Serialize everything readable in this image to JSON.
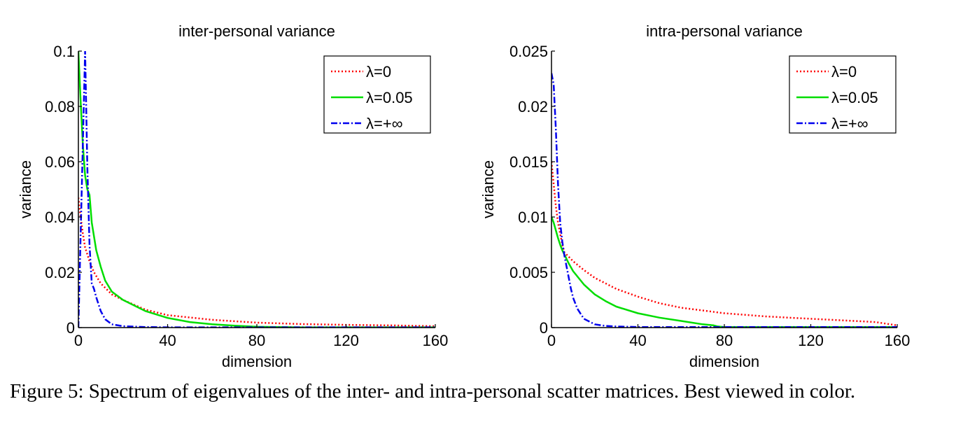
{
  "caption": "Figure 5: Spectrum of eigenvalues of the inter- and intra-personal scatter matrices. Best viewed in color.",
  "chart_data": [
    {
      "type": "line",
      "title": "inter-personal variance",
      "xlabel": "dimension",
      "ylabel": "variance",
      "xlim": [
        0,
        160
      ],
      "ylim": [
        0,
        0.1
      ],
      "xticks": [
        0,
        40,
        80,
        120,
        160
      ],
      "xtick_labels": [
        "0",
        "40",
        "80",
        "120",
        "160"
      ],
      "yticks": [
        0,
        0.02,
        0.04,
        0.06,
        0.08,
        0.1
      ],
      "ytick_labels": [
        "0",
        "0.02",
        "0.04",
        "0.06",
        "0.08",
        "0.1"
      ],
      "grid": false,
      "legend_position": "top-right",
      "series": [
        {
          "name": "λ=0",
          "color": "#ff0000",
          "style": "dotted",
          "x": [
            0,
            1,
            2,
            3,
            5,
            7,
            10,
            15,
            20,
            30,
            40,
            60,
            80,
            100,
            120,
            140,
            160
          ],
          "y": [
            0.047,
            0.04,
            0.034,
            0.029,
            0.024,
            0.02,
            0.016,
            0.012,
            0.01,
            0.0065,
            0.0045,
            0.0028,
            0.0018,
            0.0013,
            0.001,
            0.0008,
            0.0005
          ]
        },
        {
          "name": "λ=0.05",
          "color": "#00dd00",
          "style": "solid",
          "x": [
            0,
            1,
            2,
            3,
            4,
            5,
            6,
            8,
            10,
            12,
            15,
            20,
            25,
            30,
            40,
            50,
            60,
            70,
            80,
            100,
            120,
            140,
            160
          ],
          "y": [
            0.1,
            0.082,
            0.066,
            0.055,
            0.05,
            0.048,
            0.038,
            0.028,
            0.022,
            0.017,
            0.013,
            0.01,
            0.008,
            0.006,
            0.0035,
            0.002,
            0.0012,
            0.0007,
            0.0003,
            0.0001,
            0.0001,
            0.0001,
            0.0001
          ]
        },
        {
          "name": "λ=+∞",
          "color": "#0000ee",
          "style": "dashdot",
          "x": [
            0,
            3,
            4,
            5,
            6,
            7,
            8,
            10,
            12,
            15,
            20,
            30,
            40,
            60,
            80,
            100,
            120,
            140,
            160
          ],
          "y": [
            0,
            0.1,
            0.058,
            0.03,
            0.016,
            0.014,
            0.011,
            0.006,
            0.003,
            0.0012,
            0.0005,
            0.0002,
            0.0001,
            0.0001,
            0.0001,
            0.0001,
            0.0001,
            0.0001,
            0.0001
          ]
        }
      ]
    },
    {
      "type": "line",
      "title": "intra-personal variance",
      "xlabel": "dimension",
      "ylabel": "variance",
      "xlim": [
        0,
        160
      ],
      "ylim": [
        0,
        0.025
      ],
      "xticks": [
        0,
        40,
        80,
        120,
        160
      ],
      "xtick_labels": [
        "0",
        "40",
        "80",
        "120",
        "160"
      ],
      "yticks": [
        0,
        0.005,
        0.01,
        0.015,
        0.02,
        0.025
      ],
      "ytick_labels": [
        "0",
        "0.005",
        "0.01",
        "0.015",
        "0.02",
        "0.025"
      ],
      "grid": false,
      "legend_position": "top-right",
      "series": [
        {
          "name": "λ=0",
          "color": "#ff0000",
          "style": "dotted",
          "x": [
            0,
            1,
            2,
            3,
            4,
            5,
            6,
            8,
            10,
            15,
            20,
            30,
            40,
            50,
            60,
            80,
            100,
            120,
            140,
            150,
            160
          ],
          "y": [
            0.015,
            0.013,
            0.011,
            0.0095,
            0.0085,
            0.0075,
            0.0068,
            0.0064,
            0.006,
            0.0052,
            0.0045,
            0.0035,
            0.0028,
            0.0022,
            0.0018,
            0.0013,
            0.001,
            0.0008,
            0.0006,
            0.0005,
            0.0002
          ]
        },
        {
          "name": "λ=0.05",
          "color": "#00dd00",
          "style": "solid",
          "x": [
            0,
            1,
            2,
            3,
            4,
            5,
            6,
            8,
            10,
            15,
            20,
            25,
            30,
            40,
            50,
            60,
            70,
            75,
            77,
            80,
            100,
            120,
            140,
            160
          ],
          "y": [
            0.01,
            0.0095,
            0.0088,
            0.0081,
            0.0075,
            0.007,
            0.0066,
            0.0058,
            0.0051,
            0.0039,
            0.003,
            0.0024,
            0.0019,
            0.0013,
            0.0009,
            0.0006,
            0.0003,
            0.0002,
            0.0001,
            5e-05,
            5e-05,
            5e-05,
            5e-05,
            5e-05
          ]
        },
        {
          "name": "λ=+∞",
          "color": "#0000ee",
          "style": "dashdot",
          "x": [
            0,
            1,
            2,
            3,
            4,
            5,
            6,
            7,
            8,
            9,
            10,
            12,
            15,
            20,
            25,
            30,
            40,
            60,
            80,
            100,
            120,
            140,
            160
          ],
          "y": [
            0.023,
            0.022,
            0.018,
            0.013,
            0.0095,
            0.0078,
            0.0065,
            0.0055,
            0.0045,
            0.0035,
            0.0027,
            0.0017,
            0.0008,
            0.0003,
            0.00015,
            0.0001,
            5e-05,
            5e-05,
            5e-05,
            5e-05,
            5e-05,
            5e-05,
            5e-05
          ]
        }
      ]
    }
  ]
}
